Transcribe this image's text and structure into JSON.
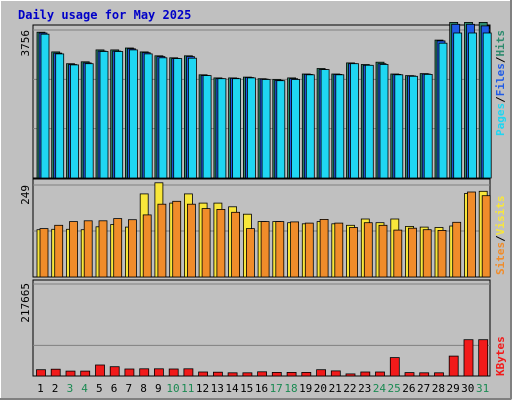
{
  "chart_data": {
    "type": "bar",
    "title": "Daily usage for May 2025",
    "categories": [
      "1",
      "2",
      "3",
      "4",
      "5",
      "6",
      "7",
      "8",
      "9",
      "10",
      "11",
      "12",
      "13",
      "14",
      "15",
      "16",
      "17",
      "18",
      "19",
      "20",
      "21",
      "22",
      "23",
      "24",
      "25",
      "26",
      "27",
      "28",
      "29",
      "30",
      "31"
    ],
    "weekend_days": [
      "3",
      "4",
      "10",
      "11",
      "17",
      "18",
      "24",
      "25",
      "31"
    ],
    "panels": [
      {
        "id": "traffic",
        "ymax": 3756,
        "ytick_label": "3756",
        "grid": true,
        "legend": [
          "Pages",
          "/",
          "Files",
          "/",
          "Hits"
        ],
        "series": [
          {
            "name": "Hits",
            "color": "#2e8b6e",
            "values": [
              3700,
              3200,
              2900,
              2950,
              3250,
              3250,
              3300,
              3200,
              3100,
              3050,
              3100,
              2620,
              2540,
              2540,
              2560,
              2520,
              2500,
              2540,
              2640,
              2780,
              2640,
              2920,
              2880,
              2940,
              2640,
              2600,
              2650,
              3500,
              3950,
              3950,
              3950
            ]
          },
          {
            "name": "Files",
            "color": "#1f5be6",
            "values": [
              3680,
              3170,
              2880,
              2920,
              3220,
              3220,
              3280,
              3180,
              3080,
              3030,
              3080,
              2600,
              2520,
              2530,
              2550,
              2510,
              2480,
              2520,
              2630,
              2750,
              2630,
              2900,
              2860,
              2900,
              2630,
              2590,
              2640,
              3480,
              3900,
              3900,
              3860
            ]
          },
          {
            "name": "Pages",
            "color": "#1fd6f2",
            "values": [
              3650,
              3150,
              2870,
              2900,
              3210,
              3210,
              3250,
              3150,
              3050,
              3030,
              3040,
              2600,
              2520,
              2520,
              2540,
              2500,
              2470,
              2500,
              2620,
              2750,
              2620,
              2900,
              2860,
              2880,
              2620,
              2580,
              2630,
              3420,
              3680,
              3680,
              3680
            ]
          }
        ]
      },
      {
        "id": "visitors",
        "ymax": 249,
        "ytick_label": "249",
        "grid": true,
        "legend": [
          "Sites",
          "/",
          "Visits"
        ],
        "series": [
          {
            "name": "Visits",
            "color": "#f8e63a",
            "values": [
              128,
              129,
              129,
              128,
              136,
              142,
              135,
              225,
              255,
              200,
              225,
              200,
              200,
              190,
              170,
              150,
              150,
              147,
              144,
              150,
              144,
              140,
              157,
              147,
              157,
              137,
              135,
              134,
              138,
              226,
              232
            ]
          },
          {
            "name": "Sites",
            "color": "#f08c2a",
            "values": [
              131,
              140,
              150,
              152,
              152,
              158,
              155,
              168,
              197,
              205,
              197,
              185,
              183,
              175,
              131,
              150,
              150,
              149,
              146,
              156,
              146,
              134,
              147,
              140,
              127,
              132,
              128,
              126,
              148,
              230,
              220
            ]
          }
        ]
      },
      {
        "id": "volume",
        "ymax": 217665,
        "ytick_label": "217665",
        "grid": true,
        "legend": [
          "KBytes"
        ],
        "series": [
          {
            "name": "KBytes",
            "color": "#f21a1a",
            "values": [
              15000,
              16000,
              11500,
              11500,
              26000,
              22000,
              16500,
              17000,
              17000,
              16500,
              17000,
              9500,
              9000,
              7500,
              7500,
              10000,
              8500,
              8500,
              8500,
              15000,
              12000,
              5000,
              9500,
              9500,
              43500,
              8000,
              7500,
              7500,
              47000,
              86000,
              86000
            ]
          }
        ]
      }
    ]
  }
}
